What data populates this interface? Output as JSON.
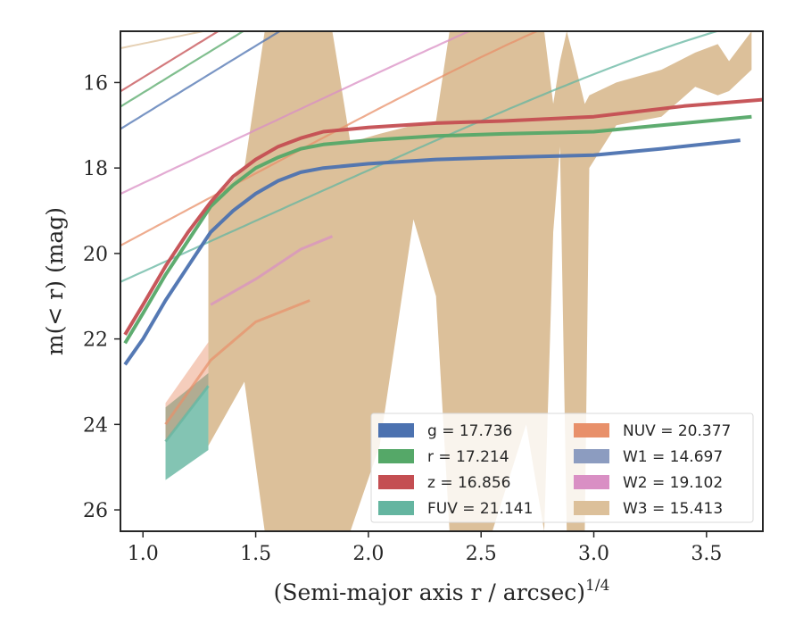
{
  "chart_data": {
    "type": "line",
    "title": "",
    "xlabel": "(Semi-major axis r / arcsec)",
    "xlabel_sup": "1/4",
    "ylabel": "m(< r) (mag)",
    "xlim": [
      0.9,
      3.75
    ],
    "ylim": [
      26.5,
      14.8
    ],
    "y_inverted": true,
    "grid": false,
    "legend_position": "lower-right",
    "x_ticks": [
      "1.0",
      "1.5",
      "2.0",
      "2.5",
      "3.0",
      "3.5"
    ],
    "y_ticks": [
      "16",
      "18",
      "20",
      "22",
      "24",
      "26"
    ],
    "legend": [
      {
        "band": "g",
        "label": "g = 17.736",
        "color": "#4c72b0"
      },
      {
        "band": "r",
        "label": "r = 17.214",
        "color": "#55a868"
      },
      {
        "band": "z",
        "label": "z = 16.856",
        "color": "#c44e52"
      },
      {
        "band": "FUV",
        "label": "FUV = 21.141",
        "color": "#64b5a0"
      },
      {
        "band": "NUV",
        "label": "NUV = 20.377",
        "color": "#e8906a"
      },
      {
        "band": "W1",
        "label": "W1 = 14.697",
        "color": "#8c9cc0"
      },
      {
        "band": "W2",
        "label": "W2 = 19.102",
        "color": "#d98fc4"
      },
      {
        "band": "W3",
        "label": "W3 = 15.413",
        "color": "#dcc09a"
      }
    ],
    "series": [
      {
        "name": "g",
        "color": "#4c72b0",
        "data": [
          [
            0.92,
            22.6
          ],
          [
            1.0,
            22.0
          ],
          [
            1.1,
            21.1
          ],
          [
            1.2,
            20.3
          ],
          [
            1.3,
            19.5
          ],
          [
            1.4,
            19.0
          ],
          [
            1.5,
            18.6
          ],
          [
            1.6,
            18.3
          ],
          [
            1.7,
            18.1
          ],
          [
            1.8,
            18.0
          ],
          [
            2.0,
            17.9
          ],
          [
            2.3,
            17.8
          ],
          [
            2.6,
            17.75
          ],
          [
            3.0,
            17.7
          ],
          [
            3.3,
            17.55
          ],
          [
            3.65,
            17.35
          ]
        ],
        "model": {
          "minf": 17.736,
          "r0": 0.7,
          "k": 3.0
        }
      },
      {
        "name": "r",
        "color": "#55a868",
        "data": [
          [
            0.92,
            22.1
          ],
          [
            1.0,
            21.4
          ],
          [
            1.1,
            20.5
          ],
          [
            1.2,
            19.7
          ],
          [
            1.3,
            18.9
          ],
          [
            1.4,
            18.4
          ],
          [
            1.5,
            18.0
          ],
          [
            1.6,
            17.75
          ],
          [
            1.7,
            17.55
          ],
          [
            1.8,
            17.45
          ],
          [
            2.0,
            17.35
          ],
          [
            2.3,
            17.25
          ],
          [
            2.6,
            17.2
          ],
          [
            3.0,
            17.15
          ],
          [
            3.3,
            17.0
          ],
          [
            3.7,
            16.8
          ]
        ],
        "model": {
          "minf": 17.214,
          "r0": 0.7,
          "k": 3.0
        }
      },
      {
        "name": "z",
        "color": "#c44e52",
        "data": [
          [
            0.92,
            21.9
          ],
          [
            1.0,
            21.2
          ],
          [
            1.1,
            20.3
          ],
          [
            1.2,
            19.5
          ],
          [
            1.3,
            18.8
          ],
          [
            1.4,
            18.2
          ],
          [
            1.5,
            17.8
          ],
          [
            1.6,
            17.5
          ],
          [
            1.7,
            17.3
          ],
          [
            1.8,
            17.15
          ],
          [
            2.0,
            17.05
          ],
          [
            2.3,
            16.95
          ],
          [
            2.6,
            16.9
          ],
          [
            3.0,
            16.8
          ],
          [
            3.4,
            16.55
          ],
          [
            3.75,
            16.4
          ]
        ],
        "model": {
          "minf": 16.856,
          "r0": 0.7,
          "k": 3.0
        }
      },
      {
        "name": "FUV",
        "color": "#64b5a0",
        "data": [
          [
            1.1,
            24.4
          ],
          [
            1.29,
            23.1
          ]
        ],
        "band_data": [
          [
            1.1,
            23.6,
            25.3
          ],
          [
            1.29,
            22.8,
            24.6
          ]
        ],
        "model": {
          "minf": 21.141,
          "r0": 0.7,
          "k": 2.2
        }
      },
      {
        "name": "NUV",
        "color": "#e8906a",
        "data": [
          [
            1.1,
            24.0
          ],
          [
            1.3,
            22.5
          ],
          [
            1.5,
            21.6
          ],
          [
            1.74,
            21.1
          ]
        ],
        "band_data": [
          [
            1.1,
            23.5,
            24.4
          ],
          [
            1.3,
            22.0,
            23.0
          ],
          [
            1.5,
            21.3,
            22.2
          ],
          [
            1.74,
            20.8,
            21.5
          ]
        ],
        "model": {
          "minf": 20.377,
          "r0": 0.7,
          "k": 2.6
        }
      },
      {
        "name": "W1",
        "color": "#8c9cc0",
        "data": [],
        "model": {
          "minf": 14.697,
          "r0": 0.1,
          "k": 0.22
        }
      },
      {
        "name": "W2",
        "color": "#d98fc4",
        "data": [
          [
            1.3,
            21.2
          ],
          [
            1.5,
            20.6
          ],
          [
            1.7,
            19.9
          ],
          [
            1.84,
            19.6
          ]
        ],
        "model": {
          "minf": 19.102,
          "r0": 0.7,
          "k": 2.3
        }
      },
      {
        "name": "W3",
        "color": "#dcc09a",
        "data": [],
        "band_data": [
          [
            1.29,
            18.9,
            24.5
          ],
          [
            1.45,
            18.0,
            23.0
          ],
          [
            1.54,
            14.8,
            26.5
          ],
          [
            1.58,
            14.8,
            26.5
          ],
          [
            1.6,
            14.8,
            26.5
          ],
          [
            1.74,
            14.8,
            26.5
          ],
          [
            1.84,
            14.8,
            26.5
          ],
          [
            1.92,
            17.4,
            26.5
          ],
          [
            2.05,
            17.2,
            24.5
          ],
          [
            2.2,
            17.0,
            19.2
          ],
          [
            2.3,
            16.9,
            21.0
          ],
          [
            2.36,
            14.8,
            26.5
          ],
          [
            2.42,
            14.8,
            26.5
          ],
          [
            2.48,
            14.8,
            26.5
          ],
          [
            2.55,
            14.8,
            26.5
          ],
          [
            2.7,
            14.8,
            24.0
          ],
          [
            2.78,
            14.8,
            26.5
          ],
          [
            2.82,
            16.5,
            19.5
          ],
          [
            2.85,
            15.5,
            17.5
          ],
          [
            2.88,
            14.8,
            26.5
          ],
          [
            2.9,
            15.2,
            26.5
          ],
          [
            2.96,
            16.5,
            26.5
          ],
          [
            2.98,
            16.3,
            18.0
          ],
          [
            3.1,
            16.0,
            17.0
          ],
          [
            3.3,
            15.7,
            16.8
          ],
          [
            3.45,
            15.3,
            16.1
          ],
          [
            3.55,
            15.1,
            16.3
          ],
          [
            3.6,
            15.5,
            16.2
          ],
          [
            3.7,
            14.8,
            15.7
          ]
        ],
        "model": {
          "minf": 15.413,
          "r0": 0.7,
          "k": 1.0
        }
      }
    ]
  }
}
